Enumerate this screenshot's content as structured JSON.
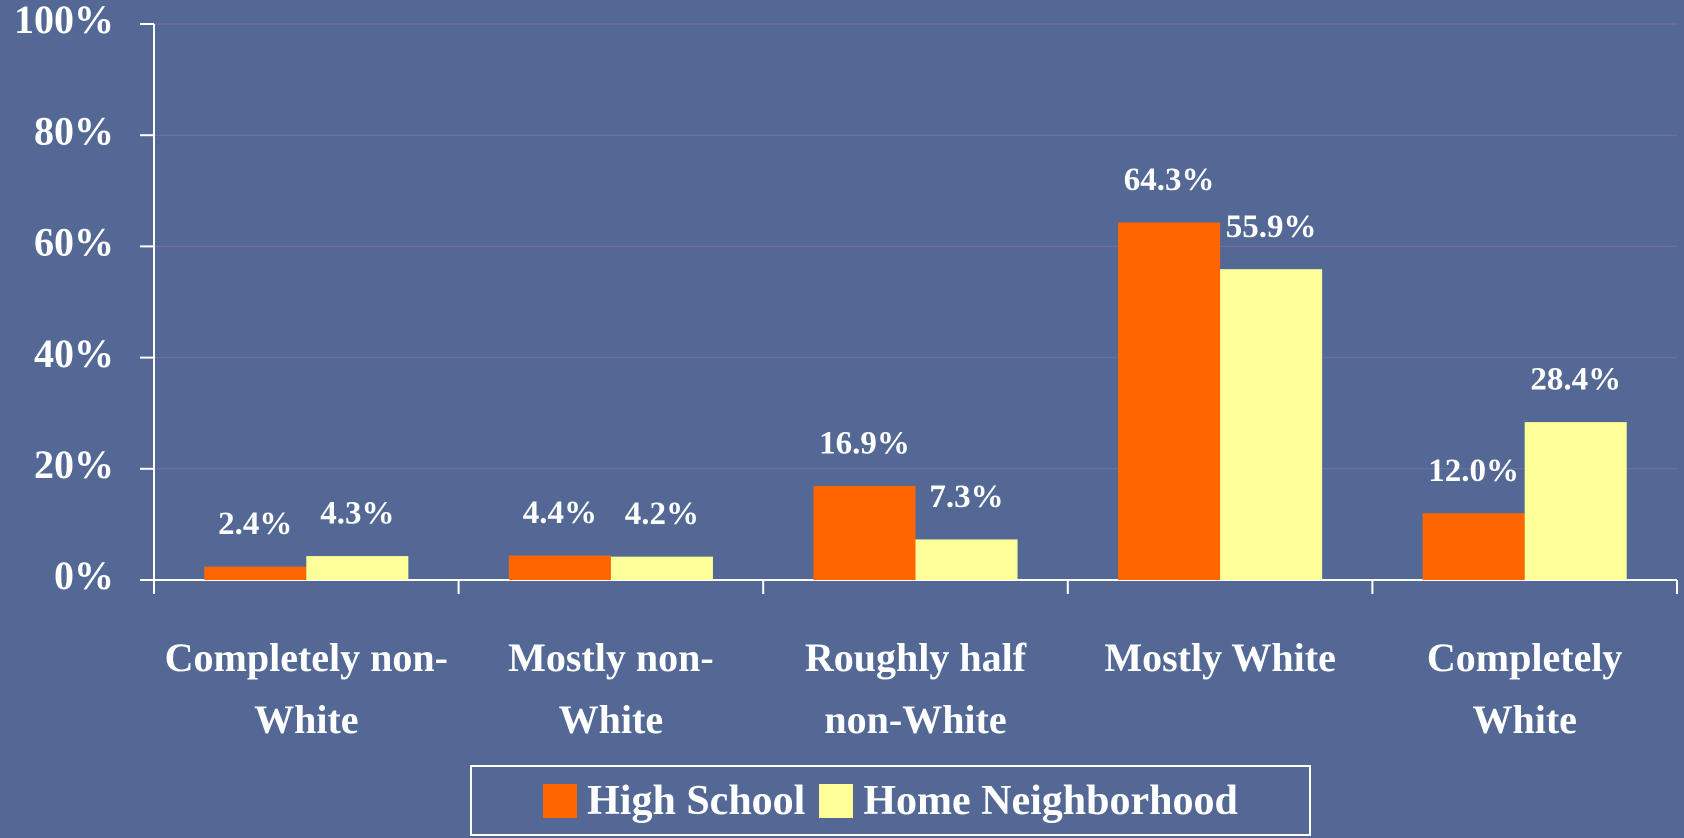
{
  "chart_data": {
    "type": "bar",
    "categories": [
      "Completely non-White",
      "Mostly non-White",
      "Roughly half non-White",
      "Mostly White",
      "Completely White"
    ],
    "series": [
      {
        "name": "High School",
        "color": "#ff6600",
        "values": [
          2.4,
          4.4,
          16.9,
          64.3,
          12.0
        ],
        "value_labels": [
          "2.4%",
          "4.4%",
          "16.9%",
          "64.3%",
          "12.0%"
        ]
      },
      {
        "name": "Home Neighborhood",
        "color": "#ffff99",
        "values": [
          4.3,
          4.2,
          7.3,
          55.9,
          28.4
        ],
        "value_labels": [
          "4.3%",
          "4.2%",
          "7.3%",
          "55.9%",
          "28.4%"
        ]
      }
    ],
    "ylim": [
      0,
      100
    ],
    "yticks": [
      {
        "value": 0,
        "label": "0%"
      },
      {
        "value": 20,
        "label": "20%"
      },
      {
        "value": 40,
        "label": "40%"
      },
      {
        "value": 60,
        "label": "60%"
      },
      {
        "value": 80,
        "label": "80%"
      },
      {
        "value": 100,
        "label": "100%"
      }
    ],
    "grid": true,
    "legend": "bottom"
  }
}
